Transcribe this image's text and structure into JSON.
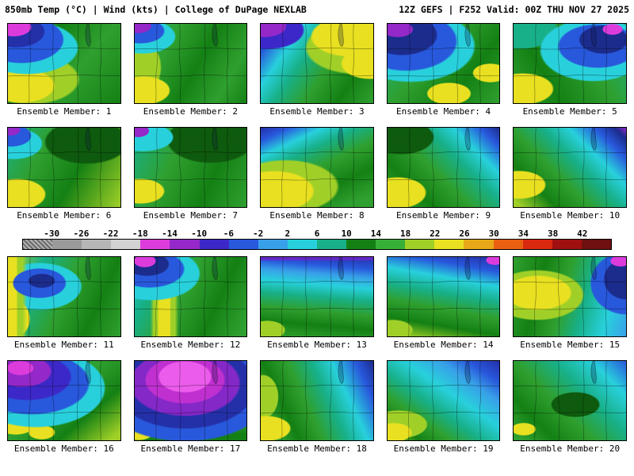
{
  "header": {
    "left": "850mb Temp (°C) | Wind (kts) | College of DuPage NEXLAB",
    "right": "12Z GEFS | F252 Valid: 00Z THU NOV 27 2025"
  },
  "colorbar": {
    "units": "°C",
    "ticks": [
      "-30",
      "-26",
      "-22",
      "-18",
      "-14",
      "-10",
      "-6",
      "-2",
      "2",
      "6",
      "10",
      "14",
      "18",
      "22",
      "26",
      "30",
      "34",
      "38",
      "42"
    ],
    "segments": [
      {
        "color": "#8a8a8a",
        "hatch": true
      },
      {
        "color": "#9a9a9a"
      },
      {
        "color": "#b6b6b6"
      },
      {
        "color": "#d2d2d2"
      },
      {
        "color": "#dc3cdc"
      },
      {
        "color": "#9428c8"
      },
      {
        "color": "#3c28c8"
      },
      {
        "color": "#2858dc"
      },
      {
        "color": "#38a0e8"
      },
      {
        "color": "#28d0dc"
      },
      {
        "color": "#18b088"
      },
      {
        "color": "#148014"
      },
      {
        "color": "#38b038"
      },
      {
        "color": "#a0d028"
      },
      {
        "color": "#e8e020"
      },
      {
        "color": "#e8a818"
      },
      {
        "color": "#e86010"
      },
      {
        "color": "#d82810"
      },
      {
        "color": "#a01010"
      },
      {
        "color": "#701010"
      }
    ]
  },
  "members": [
    {
      "label": "Ensemble Member: 1",
      "bg": "radial-gradient(16% 12% at 5% 4%, #dc3cdc 0 96%, transparent 100%), radial-gradient(26% 20% at 7% 10%, #2430a8 0 96%, transparent 100%), radial-gradient(38% 30% at 12% 20%, #2858dc 0 96%, transparent 100%), radial-gradient(46% 34% at 17% 30%, #28d0dc 0 96%, transparent 100%), radial-gradient(30% 22% at 12% 78%, #e8e020 0 94%, transparent 100%), radial-gradient(44% 32% at 20% 70%, #a0d028 0 94%, transparent 100%), linear-gradient(130deg, #18b088 0%, #148014 30%, #2fa02f 60%, #148014 100%)"
    },
    {
      "label": "Ensemble Member: 2",
      "bg": "radial-gradient(12% 9% at 3% 3%, #9428c8 0 95%, transparent 100%), radial-gradient(22% 16% at 5% 9%, #2858dc 0 95%, transparent 100%), radial-gradient(30% 22% at 7% 16%, #28d0dc 0 95%, transparent 100%), radial-gradient(24% 18% at 8% 84%, #e8e020 0 94%, transparent 100%), radial-gradient(20% 36% at 4% 55%, #a0d028 0 94%, transparent 100%), linear-gradient(120deg, #18b088 0%, #2fa02f 30%, #148014 55%, #2fa02f 80%, #148014 100%)"
    },
    {
      "label": "Ensemble Member: 3",
      "bg": "radial-gradient(20% 14% at 3% 3%, #9428c8 0 95%, transparent 100%), radial-gradient(32% 24% at 7% 8%, #3c28c8 0 95%, transparent 100%), radial-gradient(36% 26% at 80% 16%, #e8e020 0 94%, transparent 100%), radial-gradient(26% 20% at 97% 50%, #e8e020 0 94%, transparent 100%), radial-gradient(46% 34% at 85% 30%, #a0d028 0 94%, transparent 100%), linear-gradient(125deg, #2430a8 0%, #2858dc 12%, #28d0dc 26%, #18b088 40%, #2fa02f 58%, #148014 78%, #2fa02f 100%)"
    },
    {
      "label": "Ensemble Member: 4",
      "bg": "radial-gradient(14% 10% at 9% 7%, #9428c8 0 95%, transparent 100%), radial-gradient(32% 26% at 13% 14%, #1c2c8c 0 95%, transparent 100%), radial-gradient(46% 38% at 17% 22%, #2858dc 0 95%, transparent 100%), radial-gradient(58% 46% at 21% 28%, #28d0dc 0 96%, transparent 100%), radial-gradient(20% 14% at 55% 88%, #e8e020 0 94%, transparent 100%), radial-gradient(16% 12% at 92% 62%, #e8e020 0 94%, transparent 100%), linear-gradient(130deg, #18b088 0%, #2fa02f 40%, #148014 70%, #2fa02f 100%)"
    },
    {
      "label": "Ensemble Member: 5",
      "bg": "radial-gradient(9% 7% at 88% 7%, #dc3cdc 0 95%, transparent 100%), radial-gradient(22% 18% at 80% 20%, #1c2c8c 0 95%, transparent 100%), radial-gradient(36% 28% at 75% 28%, #2858dc 0 95%, transparent 100%), radial-gradient(48% 40% at 71% 33%, #28d0dc 0 96%, transparent 100%), radial-gradient(28% 20% at 8% 82%, #e8e020 0 94%, transparent 100%), radial-gradient(34% 24% at 6% 8%, #18b088 0 94%, transparent 100%), linear-gradient(240deg, #18b088 0%, #2fa02f 35%, #148014 70%, #2fa02f 100%)"
    },
    {
      "label": "Ensemble Member: 6",
      "bg": "radial-gradient(9% 7% at 2% 3%, #9428c8 0 95%, transparent 100%), radial-gradient(18% 14% at 3% 10%, #2858dc 0 95%, transparent 100%), radial-gradient(26% 20% at 5% 20%, #28d0dc 0 95%, transparent 100%), radial-gradient(26% 20% at 8% 84%, #e8e020 0 94%, transparent 100%), radial-gradient(38% 28% at 70% 18%, #0e5a0e 0 94%, transparent 100%), linear-gradient(120deg, #18b088 0%, #2fa02f 30%, #148014 60%, #a0d028 100%)"
    },
    {
      "label": "Ensemble Member: 7",
      "bg": "radial-gradient(10% 8% at 3% 4%, #9428c8 0 95%, transparent 100%), radial-gradient(28% 18% at 7% 12%, #28d0dc 0 95%, transparent 100%), radial-gradient(22% 16% at 5% 80%, #e8e020 0 94%, transparent 100%), radial-gradient(40% 30% at 68% 15%, #0e5a0e 0 94%, transparent 100%), linear-gradient(115deg, #18b088 0%, #2fa02f 35%, #148014 68%, #2fa02f 100%)"
    },
    {
      "label": "Ensemble Member: 8",
      "bg": "radial-gradient(36% 26% at 12% 80%, #e8e020 0 94%, transparent 100%), radial-gradient(48% 34% at 22% 74%, #a0d028 0 94%, transparent 100%), linear-gradient(155deg, #2430a8 0%, #2858dc 10%, #28d0dc 22%, #18b088 34%, #2fa02f 50%, #148014 70%, #2fa02f 90%)"
    },
    {
      "label": "Ensemble Member: 9",
      "bg": "radial-gradient(26% 20% at 9% 82%, #e8e020 0 94%, transparent 100%), radial-gradient(30% 22% at 12% 12%, #0e5a0e 0 94%, transparent 100%), linear-gradient(225deg, #1c2c8c 0%, #2858dc 10%, #28d0dc 24%, #18b088 38%, #2fa02f 56%, #148014 76%, #2fa02f 95%)"
    },
    {
      "label": "Ensemble Member: 10",
      "bg": "radial-gradient(24% 18% at 5% 72%, #e8e020 0 94%, transparent 100%), linear-gradient(225deg, #9428c8 0%, #1c2c8c 6%, #2858dc 16%, #28d0dc 30%, #18b088 44%, #2fa02f 60%, #148014 78%, #a0d028 96%)"
    },
    {
      "label": "Ensemble Member: 11",
      "bg": "radial-gradient(12% 9% at 30% 30%, #1c2c8c 0 95%, transparent 100%), radial-gradient(24% 19% at 28% 33%, #2858dc 0 95%, transparent 100%), linear-gradient(90deg, #e8e020 0 8%, #a0d028 8% 13%, transparent 17%), radial-gradient(18% 26% at 2% 78%, #e8e020 0 94%, transparent 100%), radial-gradient(38% 30% at 28% 37%, #28d0dc 0 96%, transparent 100%), linear-gradient(115deg, #a0d028 0%, #18b088 25%, #2fa02f 50%, #148014 75%, #2fa02f 100%)"
    },
    {
      "label": "Ensemble Member: 12",
      "bg": "radial-gradient(10% 8% at 9% 5%, #dc3cdc 0 95%, transparent 100%), radial-gradient(20% 15% at 11% 9%, #1c2c8c 0 95%, transparent 100%), radial-gradient(32% 24% at 13% 15%, #2858dc 0 95%, transparent 100%), radial-gradient(44% 34% at 15% 21%, #28d0dc 0 96%, transparent 100%), linear-gradient(90deg, transparent 0 14%, #a0d028 17% 21%, #e8e020 21% 32%, #a0d028 32% 36%, transparent 39%), linear-gradient(115deg, #28d0dc 0%, #18b088 20%, #2fa02f 45%, #148014 70%, #2fa02f 95%)"
    },
    {
      "label": "Ensemble Member: 13",
      "bg": "linear-gradient(180deg, #6428c8 0 3%, transparent 5%), radial-gradient(16% 12% at 6% 92%, #a0d028 0 94%, transparent 100%), linear-gradient(185deg, #2430a8 0%, #2858dc 14%, #38a0e8 24%, #28d0dc 36%, #18b088 50%, #2fa02f 66%, #148014 82%, #2fa02f 100%)"
    },
    {
      "label": "Ensemble Member: 14",
      "bg": "radial-gradient(8% 6% at 96% 4%, #dc3cdc 0 95%, transparent 100%), radial-gradient(18% 13% at 5% 92%, #a0d028 0 94%, transparent 100%), linear-gradient(190deg, #2430a8 0%, #2858dc 15%, #28d0dc 30%, #18b088 46%, #2fa02f 62%, #148014 80%, #a0d028 98%)"
    },
    {
      "label": "Ensemble Member: 15",
      "bg": "radial-gradient(9% 7% at 95% 5%, #dc3cdc 0 95%, transparent 100%), radial-gradient(20% 26% at 100% 28%, #1c2c8c 0 95%, transparent 100%), radial-gradient(32% 40% at 100% 33%, #2858dc 0 96%, transparent 100%), radial-gradient(30% 22% at 22% 45%, #e8e020 0 94%, transparent 100%), radial-gradient(42% 32% at 21% 48%, #a0d028 0 95%, transparent 100%), linear-gradient(105deg, #2fa02f 0%, #148014 25%, #2fa02f 45%, #18b088 62%, #28d0dc 82%, #38a0e8 100%)"
    },
    {
      "label": "Ensemble Member: 16",
      "bg": "radial-gradient(12% 9% at 11% 9%, #dc3cdc 0 95%, transparent 100%), radial-gradient(26% 20% at 13% 13%, #9428c8 0 95%, transparent 100%), radial-gradient(40% 30% at 17% 20%, #3c28c8 0 95%, transparent 100%), radial-gradient(52% 40% at 21% 28%, #2858dc 0 96%, transparent 100%), radial-gradient(62% 50% at 25% 34%, #28d0dc 0 97%, transparent 100%), radial-gradient(16% 11% at 7% 82%, #e8e020 0 94%, transparent 100%), radial-gradient(12% 9% at 30% 90%, #e8e020 0 94%, transparent 100%), linear-gradient(140deg, #18b088 0%, #2fa02f 45%, #148014 70%, #a0d028 95%)"
    },
    {
      "label": "Ensemble Member: 17",
      "bg": "radial-gradient(24% 20% at 45% 20%, #ec5cec 0 95%, transparent 100%), radial-gradient(36% 30% at 45% 24%, #c030d0 0 96%, transparent 100%), radial-gradient(50% 42% at 45% 28%, #8428c8 0 96%, transparent 100%), radial-gradient(64% 54% at 45% 32%, #2430a8 0 97%, transparent 100%), radial-gradient(80% 66% at 45% 36%, #2858dc 0 97%, transparent 100%), radial-gradient(14% 10% at 3% 90%, #e8e020 0 94%, transparent 100%), linear-gradient(180deg, #28d0dc 0%, #28d0dc 45%, #18b088 60%, #2fa02f 76%, #148014 92%)"
    },
    {
      "label": "Ensemble Member: 18",
      "bg": "radial-gradient(22% 16% at 5% 85%, #e8e020 0 94%, transparent 100%), radial-gradient(14% 28% at 2% 45%, #a0d028 0 94%, transparent 100%), linear-gradient(245deg, #1c2c8c 0%, #2858dc 12%, #28d0dc 28%, #18b088 42%, #2fa02f 58%, #148014 74%, #2fa02f 88%, #a0d028 100%)"
    },
    {
      "label": "Ensemble Member: 19",
      "bg": "radial-gradient(16% 12% at 6% 90%, #e8e020 0 94%, transparent 100%), radial-gradient(26% 18% at 10% 80%, #a0d028 0 95%, transparent 100%), linear-gradient(215deg, #2430a8 0%, #2858dc 14%, #38a0e8 26%, #28d0dc 42%, #18b088 58%, #2fa02f 72%, #148014 86%, #a0d028 100%)"
    },
    {
      "label": "Ensemble Member: 20",
      "bg": "radial-gradient(11% 8% at 9% 86%, #e8e020 0 94%, transparent 100%), radial-gradient(22% 16% at 55% 55%, #0e5a0e 0 94%, transparent 100%), linear-gradient(225deg, #2858dc 0%, #28d0dc 18%, #18b088 38%, #2fa02f 58%, #148014 78%, #2fa02f 95%)"
    }
  ]
}
